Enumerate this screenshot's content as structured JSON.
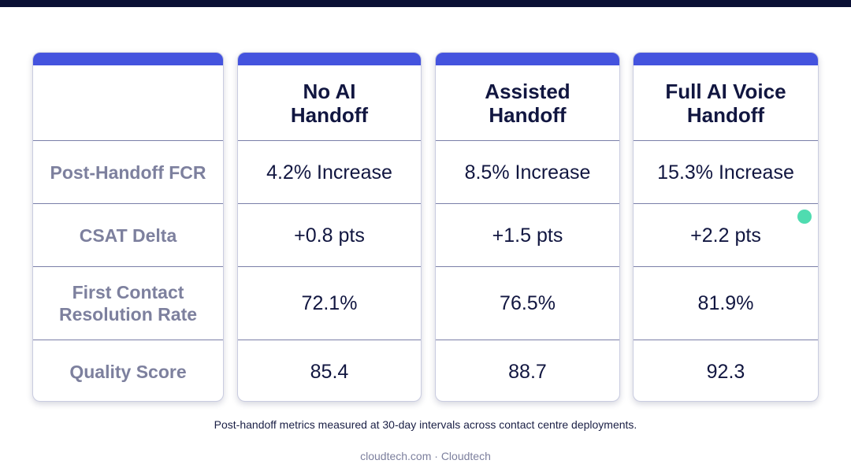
{
  "columns": {
    "c1": {
      "title": "No AI\nHandoff",
      "values": [
        "4.2% Increase",
        "+0.8 pts",
        "72.1%",
        "85.4"
      ]
    },
    "c2": {
      "title": "Assisted\nHandoff",
      "values": [
        "8.5% Increase",
        "+1.5 pts",
        "76.5%",
        "88.7"
      ]
    },
    "c3": {
      "title": "Full AI Voice\nHandoff",
      "values": [
        "15.3% Increase",
        "+2.2 pts",
        "81.9%",
        "92.3"
      ]
    }
  },
  "row_labels": [
    "Post-Handoff FCR",
    "CSAT Delta",
    "First Contact\nResolution Rate",
    "Quality Score"
  ],
  "footnote": "Post-handoff metrics measured at 30-day intervals across contact centre deployments.",
  "source": "cloudtech.com · Cloudtech",
  "colors": {
    "top_bar": "#0b1035",
    "card_cap": "#4453de",
    "heading_text": "#111640",
    "label_text": "#7d809e",
    "indicator_dot": "#4fdcb0"
  }
}
